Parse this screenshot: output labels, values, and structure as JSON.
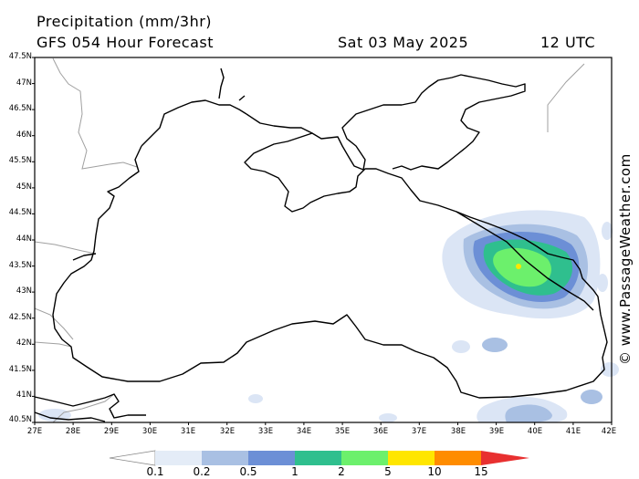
{
  "header": {
    "title": "Precipitation (mm/3hr)",
    "forecast": "GFS 054 Hour Forecast",
    "date": "Sat 03 May 2025",
    "time": "12 UTC"
  },
  "axes": {
    "lat_labels": [
      "47.5N",
      "47N",
      "46.5N",
      "46N",
      "45.5N",
      "45N",
      "44.5N",
      "44N",
      "43.5N",
      "43N",
      "42.5N",
      "42N",
      "41.5N",
      "41N",
      "40.5N"
    ],
    "lon_labels": [
      "27E",
      "28E",
      "29E",
      "30E",
      "31E",
      "32E",
      "33E",
      "34E",
      "35E",
      "36E",
      "37E",
      "38E",
      "39E",
      "40E",
      "41E",
      "42E"
    ]
  },
  "copyright": "© www.PassageWeather.com",
  "legend": {
    "labels": [
      "0.1",
      "0.2",
      "0.5",
      "1",
      "2",
      "5",
      "10",
      "15"
    ],
    "colors": [
      "#ffffff",
      "#e4ecf7",
      "#a9c0e3",
      "#6c8fd6",
      "#2fbf8e",
      "#6cf06c",
      "#ffe600",
      "#ff8c00",
      "#e83030"
    ]
  },
  "map": {
    "region": "Black Sea",
    "colors": {
      "coast": "#000000",
      "border": "#a0a0a0",
      "light_rain": "#dbe5f5"
    }
  }
}
